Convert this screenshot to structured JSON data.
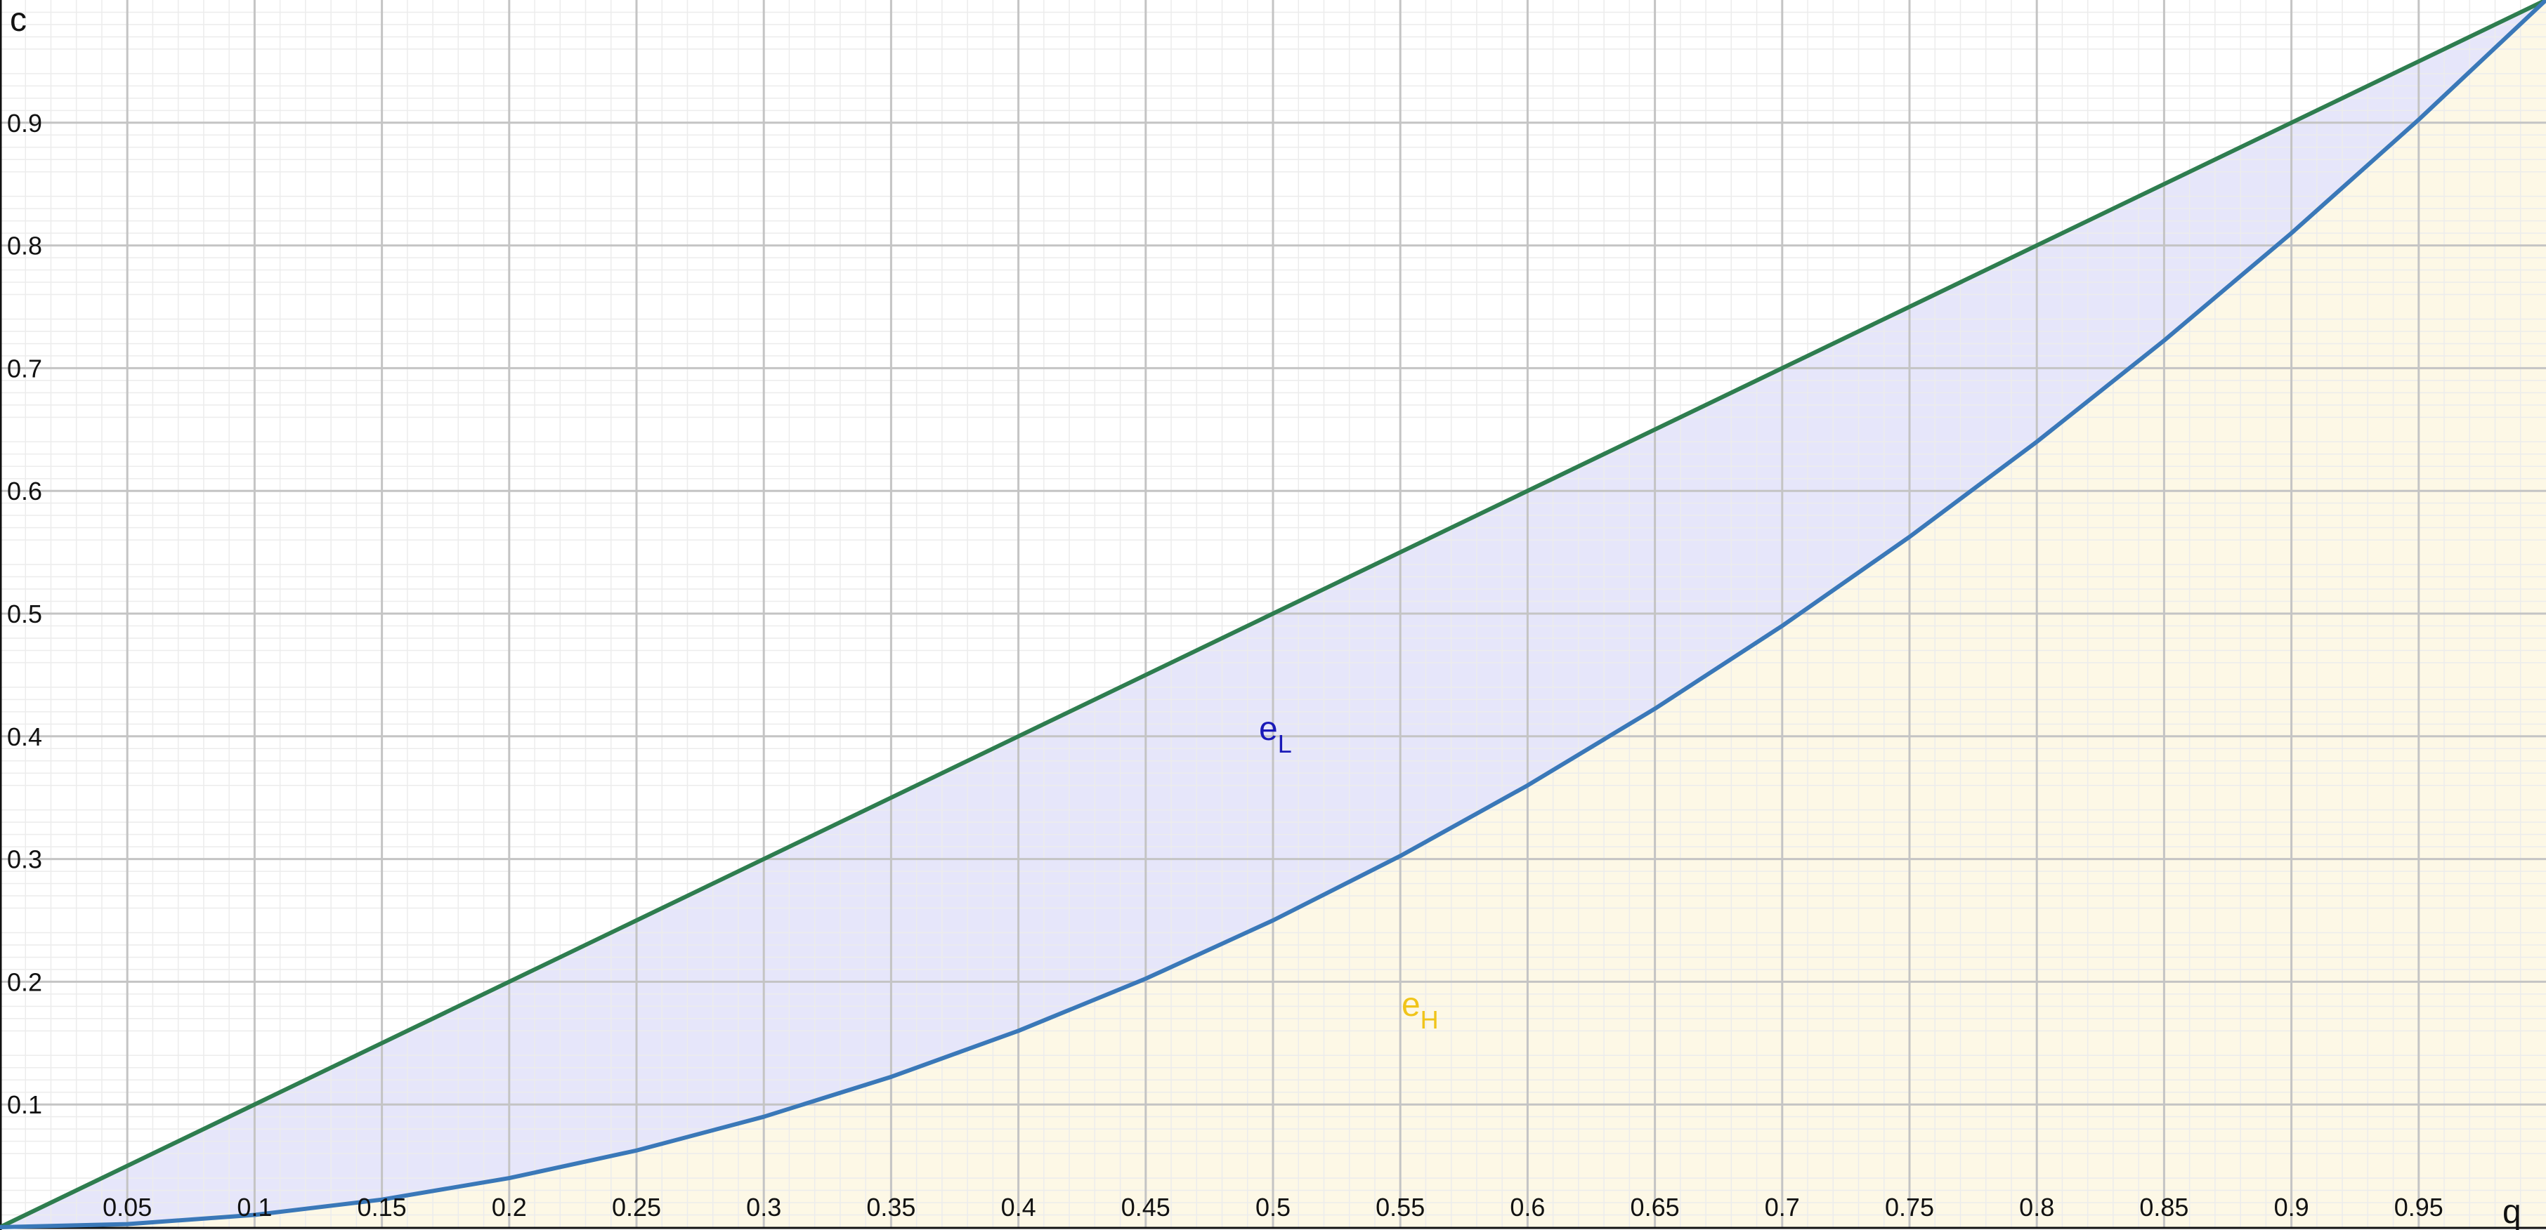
{
  "chart_data": {
    "type": "area",
    "xlabel": "q",
    "ylabel": "c",
    "xlim": [
      0,
      1
    ],
    "ylim": [
      0,
      1
    ],
    "grid": true,
    "x_ticks": [
      "0.05",
      "0.1",
      "0.15",
      "0.2",
      "0.25",
      "0.3",
      "0.35",
      "0.4",
      "0.45",
      "0.5",
      "0.55",
      "0.6",
      "0.65",
      "0.7",
      "0.75",
      "0.8",
      "0.85",
      "0.9",
      "0.95"
    ],
    "y_ticks": [
      "0.1",
      "0.2",
      "0.3",
      "0.4",
      "0.5",
      "0.6",
      "0.7",
      "0.8",
      "0.9"
    ],
    "series": [
      {
        "color": "#2e7d4f",
        "x": [
          0,
          0.25,
          0.5,
          0.75,
          1
        ],
        "y": [
          0,
          0.25,
          0.5,
          0.75,
          1
        ]
      },
      {
        "color": "#3a78b8",
        "x": [
          0,
          0.05,
          0.1,
          0.15,
          0.2,
          0.25,
          0.3,
          0.35,
          0.4,
          0.45,
          0.5,
          0.55,
          0.6,
          0.65,
          0.7,
          0.75,
          0.8,
          0.85,
          0.9,
          0.95,
          1
        ],
        "y": [
          0,
          0.0025,
          0.01,
          0.0225,
          0.04,
          0.0625,
          0.09,
          0.1225,
          0.16,
          0.2025,
          0.25,
          0.3025,
          0.36,
          0.4225,
          0.49,
          0.5625,
          0.64,
          0.7225,
          0.81,
          0.9025,
          1
        ]
      }
    ],
    "regions": [
      {
        "label_main": "e",
        "label_sub": "L",
        "label_color": "#1a1ab8",
        "fill_color": "#e6e6fa",
        "label_at": [
          0.5,
          0.38
        ]
      },
      {
        "label_main": "e",
        "label_sub": "H",
        "label_color": "#f0c419",
        "fill_color": "#fdf8e6",
        "label_at": [
          0.556,
          0.155
        ]
      }
    ],
    "colors": {
      "background": "#ffffff",
      "major_grid": "#c4c4c4",
      "minor_grid": "#ececec"
    }
  }
}
